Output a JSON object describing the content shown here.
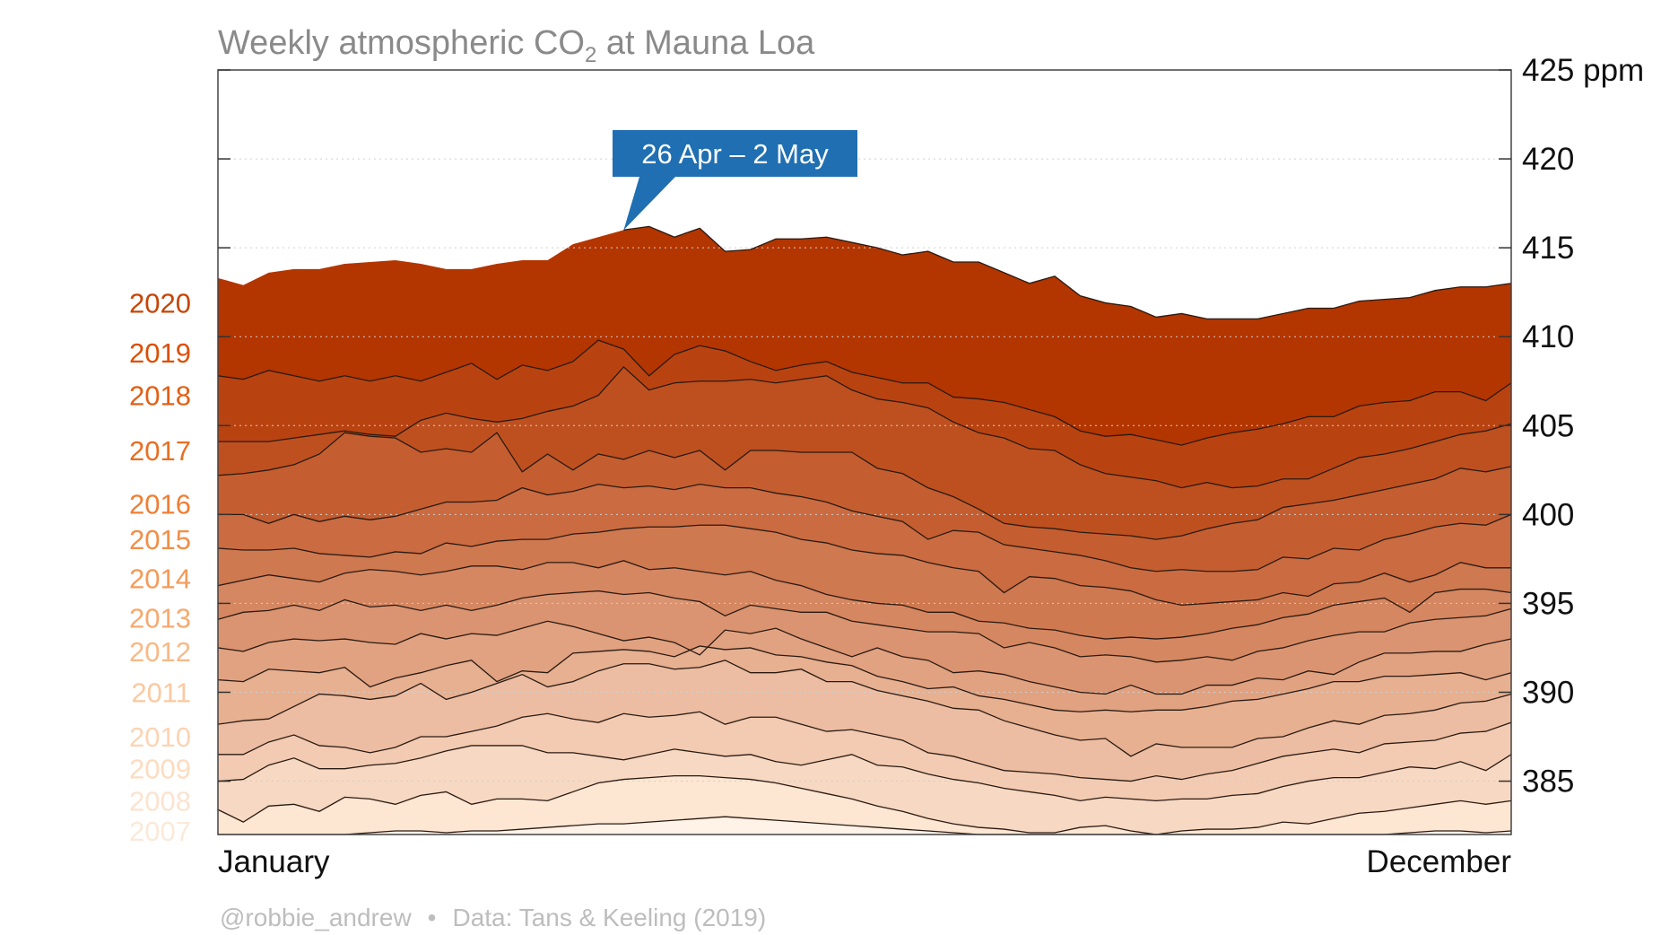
{
  "chart_data": {
    "type": "area",
    "title_prefix": "Weekly atmospheric CO",
    "title_sub": "2",
    "title_suffix": " at Mauna Loa",
    "x_start_label": "January",
    "x_end_label": "December",
    "y_unit": "ppm",
    "ylim": [
      382,
      425
    ],
    "yticks": [
      385,
      390,
      395,
      400,
      405,
      410,
      415,
      420,
      425
    ],
    "grid": "horizontal dotted",
    "annotation": {
      "text": "26 Apr – 2 May",
      "week": 16,
      "color": "#1f6fb2"
    },
    "footer_handle": "@robbie_andrew",
    "footer_source": "Data: Tans & Keeling (2019)",
    "base_colors": {
      "dark": "#b33500",
      "light": "#fde6d2"
    },
    "series": [
      {
        "name": "2007",
        "label_color": "#fbe9d9",
        "label_y": 382.2,
        "values": [
          382.0,
          382.0,
          382.0,
          382.0,
          382.0,
          382.0,
          382.1,
          382.2,
          382.2,
          382.1,
          382.2,
          382.2,
          382.3,
          382.4,
          382.5,
          382.6,
          382.6,
          382.7,
          382.8,
          382.9,
          383.0,
          382.9,
          382.8,
          382.7,
          382.6,
          382.5,
          382.4,
          382.3,
          382.2,
          382.1,
          382.0,
          382.0,
          382.0,
          382.0,
          382.0,
          382.0,
          382.0,
          382.0,
          382.0,
          382.0,
          382.0,
          382.0,
          382.0,
          382.0,
          382.0,
          382.0,
          382.0,
          382.1,
          382.2,
          382.2,
          382.1,
          382.2
        ]
      },
      {
        "name": "2008",
        "label_color": "#fbe3cf",
        "label_y": 383.9,
        "values": [
          383.4,
          382.7,
          383.6,
          383.7,
          383.3,
          384.1,
          384.0,
          383.7,
          384.2,
          384.4,
          383.7,
          384.0,
          384.0,
          383.9,
          384.4,
          384.9,
          385.1,
          385.2,
          385.3,
          385.3,
          385.2,
          385.1,
          384.9,
          384.6,
          384.3,
          384.0,
          383.6,
          383.3,
          382.9,
          382.6,
          382.4,
          382.3,
          382.1,
          382.1,
          382.4,
          382.5,
          382.2,
          382.0,
          382.2,
          382.3,
          382.3,
          382.4,
          382.7,
          382.6,
          382.9,
          383.2,
          383.3,
          383.5,
          383.7,
          383.9,
          383.7,
          383.9
        ]
      },
      {
        "name": "2009",
        "label_color": "#fcdcc0",
        "label_y": 385.7,
        "values": [
          385.0,
          385.1,
          385.9,
          386.3,
          385.7,
          385.7,
          385.9,
          386.0,
          386.3,
          386.7,
          387.0,
          387.0,
          387.0,
          386.6,
          386.6,
          386.4,
          386.2,
          386.5,
          386.8,
          386.6,
          386.4,
          386.5,
          386.1,
          385.9,
          386.2,
          386.5,
          385.9,
          385.8,
          385.4,
          385.1,
          384.9,
          384.6,
          384.4,
          384.2,
          383.9,
          384.1,
          384.0,
          383.9,
          384.0,
          384.0,
          384.2,
          384.3,
          384.7,
          385.0,
          385.2,
          385.2,
          385.5,
          385.8,
          385.7,
          386.1,
          385.6,
          386.5
        ]
      },
      {
        "name": "2010",
        "label_color": "#fbd4b4",
        "label_y": 387.5,
        "values": [
          386.5,
          386.5,
          387.2,
          387.6,
          387.0,
          386.9,
          386.6,
          386.9,
          387.5,
          387.5,
          387.8,
          388.1,
          388.6,
          388.8,
          388.5,
          388.3,
          388.8,
          388.6,
          388.7,
          388.9,
          388.2,
          388.6,
          388.6,
          388.2,
          387.8,
          387.9,
          387.6,
          387.3,
          386.6,
          386.4,
          386.0,
          385.6,
          385.5,
          385.4,
          385.2,
          385.1,
          385.0,
          385.3,
          385.1,
          385.4,
          385.6,
          386.0,
          386.4,
          386.6,
          386.8,
          386.6,
          387.1,
          387.2,
          387.3,
          387.7,
          387.8,
          388.3
        ]
      },
      {
        "name": "2011",
        "label_color": "#fac9a0",
        "label_y": 390.0,
        "values": [
          388.2,
          388.4,
          388.5,
          389.2,
          389.9,
          389.8,
          389.6,
          389.8,
          390.5,
          389.6,
          390.0,
          390.5,
          391.0,
          390.3,
          390.6,
          391.2,
          391.6,
          391.6,
          391.3,
          391.4,
          391.8,
          391.1,
          391.1,
          391.3,
          390.6,
          390.6,
          390.1,
          389.8,
          389.5,
          389.1,
          389.0,
          388.4,
          388.0,
          387.6,
          387.3,
          387.4,
          386.4,
          387.1,
          386.9,
          386.9,
          386.9,
          387.4,
          387.5,
          388.0,
          388.4,
          388.2,
          388.7,
          388.8,
          389.0,
          389.4,
          389.5,
          389.9
        ]
      },
      {
        "name": "2012",
        "label_color": "#f8b987",
        "label_y": 392.3,
        "values": [
          390.7,
          390.6,
          391.3,
          391.2,
          391.1,
          391.4,
          390.3,
          390.8,
          391.1,
          391.5,
          391.8,
          390.6,
          391.2,
          391.1,
          392.2,
          392.3,
          392.4,
          392.3,
          392.0,
          392.6,
          392.4,
          392.5,
          392.1,
          392.0,
          391.7,
          391.5,
          390.9,
          390.6,
          390.2,
          390.3,
          389.8,
          389.6,
          389.3,
          389.0,
          388.9,
          389.0,
          388.9,
          389.0,
          389.0,
          389.2,
          389.5,
          389.6,
          389.9,
          390.2,
          390.6,
          390.6,
          390.9,
          390.9,
          391.0,
          391.1,
          390.7,
          391.1
        ]
      },
      {
        "name": "2013",
        "label_color": "#f7a96e",
        "label_y": 394.2,
        "values": [
          392.5,
          392.3,
          392.8,
          393.0,
          392.9,
          393.0,
          392.8,
          392.7,
          393.3,
          393.0,
          393.3,
          393.2,
          393.6,
          394.0,
          393.7,
          393.3,
          392.9,
          393.1,
          392.8,
          392.1,
          393.5,
          393.3,
          393.6,
          393.0,
          392.5,
          392.0,
          392.5,
          392.0,
          391.8,
          391.1,
          391.2,
          391.0,
          390.6,
          390.3,
          390.0,
          389.9,
          390.4,
          389.9,
          389.9,
          390.4,
          390.4,
          390.8,
          390.7,
          391.2,
          391.0,
          391.7,
          392.2,
          392.2,
          392.3,
          392.3,
          392.7,
          393.0
        ]
      },
      {
        "name": "2014",
        "label_color": "#f59a59",
        "label_y": 396.4,
        "values": [
          394.1,
          394.5,
          394.6,
          394.9,
          394.6,
          395.2,
          394.8,
          394.9,
          394.6,
          394.9,
          394.6,
          394.9,
          395.3,
          395.5,
          395.6,
          395.7,
          395.5,
          395.6,
          395.3,
          395.1,
          394.3,
          394.9,
          394.7,
          394.5,
          394.5,
          394.0,
          393.8,
          393.6,
          393.4,
          393.4,
          393.3,
          392.5,
          392.8,
          392.5,
          392.0,
          392.1,
          392.0,
          391.7,
          391.8,
          392.0,
          391.8,
          392.3,
          392.5,
          392.9,
          393.2,
          393.4,
          393.4,
          393.9,
          394.1,
          394.2,
          394.3,
          394.7
        ]
      },
      {
        "name": "2015",
        "label_color": "#f38e47",
        "label_y": 398.6,
        "values": [
          396.0,
          396.3,
          396.6,
          396.4,
          396.2,
          396.7,
          396.9,
          396.8,
          396.6,
          396.8,
          397.1,
          397.1,
          396.9,
          397.3,
          397.3,
          397.0,
          397.4,
          396.9,
          397.0,
          396.8,
          396.6,
          396.8,
          396.3,
          396.0,
          395.5,
          395.2,
          395.0,
          394.9,
          394.5,
          394.5,
          394.0,
          393.9,
          393.6,
          393.5,
          393.2,
          393.0,
          393.1,
          393.0,
          393.1,
          393.3,
          393.6,
          393.8,
          394.2,
          394.4,
          394.9,
          395.1,
          395.3,
          394.5,
          395.6,
          395.8,
          395.8,
          395.6
        ]
      },
      {
        "name": "2016",
        "label_color": "#f07e34",
        "label_y": 400.6,
        "values": [
          398.1,
          398.0,
          398.0,
          398.1,
          397.8,
          397.7,
          397.6,
          397.9,
          397.8,
          398.4,
          398.2,
          398.5,
          398.6,
          398.6,
          398.9,
          399.0,
          399.2,
          399.3,
          399.3,
          399.4,
          399.4,
          399.2,
          399.0,
          398.6,
          398.4,
          398.0,
          397.8,
          397.7,
          397.3,
          397.0,
          396.8,
          395.6,
          396.5,
          396.4,
          396.0,
          395.9,
          395.7,
          395.2,
          394.9,
          395.0,
          395.1,
          395.2,
          395.6,
          395.4,
          396.1,
          396.2,
          396.7,
          396.2,
          396.6,
          397.3,
          397.0,
          397.0
        ]
      },
      {
        "name": "2017",
        "label_color": "#e96f22",
        "label_y": 403.6,
        "values": [
          400.0,
          400.0,
          399.5,
          400.0,
          399.6,
          399.9,
          399.7,
          399.9,
          400.3,
          400.7,
          400.7,
          400.8,
          401.5,
          401.1,
          401.3,
          401.7,
          401.5,
          401.6,
          401.4,
          401.7,
          401.5,
          401.5,
          401.2,
          401.0,
          400.7,
          400.2,
          399.9,
          399.6,
          398.6,
          399.1,
          399.0,
          398.3,
          398.1,
          397.9,
          397.7,
          397.4,
          397.0,
          396.8,
          396.9,
          396.8,
          396.8,
          396.9,
          397.6,
          397.5,
          398.1,
          398.0,
          398.6,
          398.9,
          399.3,
          399.5,
          399.4,
          400.0
        ]
      },
      {
        "name": "2018",
        "label_color": "#e45e13",
        "label_y": 406.7,
        "values": [
          402.2,
          402.3,
          402.5,
          402.8,
          403.4,
          404.6,
          404.4,
          404.3,
          403.5,
          403.7,
          403.5,
          404.6,
          402.4,
          403.4,
          402.5,
          403.4,
          403.1,
          403.6,
          403.2,
          403.6,
          402.5,
          403.6,
          403.6,
          403.5,
          403.5,
          403.5,
          402.6,
          402.3,
          401.5,
          401.0,
          400.3,
          399.5,
          399.3,
          399.2,
          399.0,
          398.9,
          398.8,
          398.6,
          398.8,
          399.2,
          399.5,
          399.7,
          400.4,
          400.6,
          400.8,
          401.1,
          401.4,
          401.7,
          402.0,
          402.6,
          402.4,
          402.7
        ]
      },
      {
        "name": "2019",
        "label_color": "#dc4f05",
        "label_y": 409.1,
        "values": [
          404.1,
          404.1,
          404.1,
          404.3,
          404.5,
          404.7,
          404.5,
          404.4,
          405.3,
          405.7,
          405.4,
          405.2,
          405.4,
          405.8,
          406.1,
          406.7,
          408.3,
          407.0,
          407.4,
          407.5,
          407.5,
          407.6,
          407.4,
          407.6,
          407.8,
          407.0,
          406.5,
          406.3,
          406.0,
          405.2,
          404.6,
          404.3,
          403.7,
          403.6,
          402.8,
          402.3,
          402.1,
          401.9,
          401.5,
          401.8,
          401.5,
          401.6,
          402.0,
          402.0,
          402.6,
          403.2,
          403.4,
          403.7,
          404.1,
          404.5,
          404.7,
          405.1
        ]
      },
      {
        "name": "2020",
        "label_color": "#c84405",
        "label_y": 411.9,
        "values": [
          407.8,
          407.6,
          408.1,
          407.8,
          407.5,
          407.8,
          407.5,
          407.8,
          407.5,
          408.0,
          408.5,
          407.6,
          408.4,
          408.1,
          408.6,
          409.8,
          409.3,
          407.8,
          409.0,
          409.5,
          409.2,
          408.6,
          408.1,
          408.4,
          408.6,
          408.0,
          407.7,
          407.4,
          407.4,
          406.6,
          406.5,
          406.3,
          405.9,
          405.5,
          404.7,
          404.4,
          404.5,
          404.2,
          403.9,
          404.3,
          404.6,
          404.8,
          405.1,
          405.5,
          405.5,
          406.1,
          406.3,
          406.4,
          406.9,
          406.9,
          406.4,
          407.4
        ]
      }
    ],
    "top_2020": [
      413.3,
      412.9,
      413.6,
      413.8,
      413.8,
      414.1,
      414.2,
      414.3,
      414.1,
      413.8,
      413.8,
      414.1,
      414.3,
      414.3,
      415.2,
      415.6,
      416.0,
      416.2,
      415.6,
      416.1,
      414.8,
      414.9,
      415.5,
      415.5,
      415.6,
      415.3,
      415.0,
      414.6,
      414.8,
      414.2,
      414.2,
      413.6,
      413.0,
      413.4,
      412.3,
      411.9,
      411.7,
      411.1,
      411.3,
      411.0,
      411.0,
      411.0,
      411.3,
      411.6,
      411.6,
      412.0,
      412.1,
      412.2,
      412.6,
      412.8,
      412.8,
      413.0
    ],
    "top_2020_cutoff_week": 16
  }
}
